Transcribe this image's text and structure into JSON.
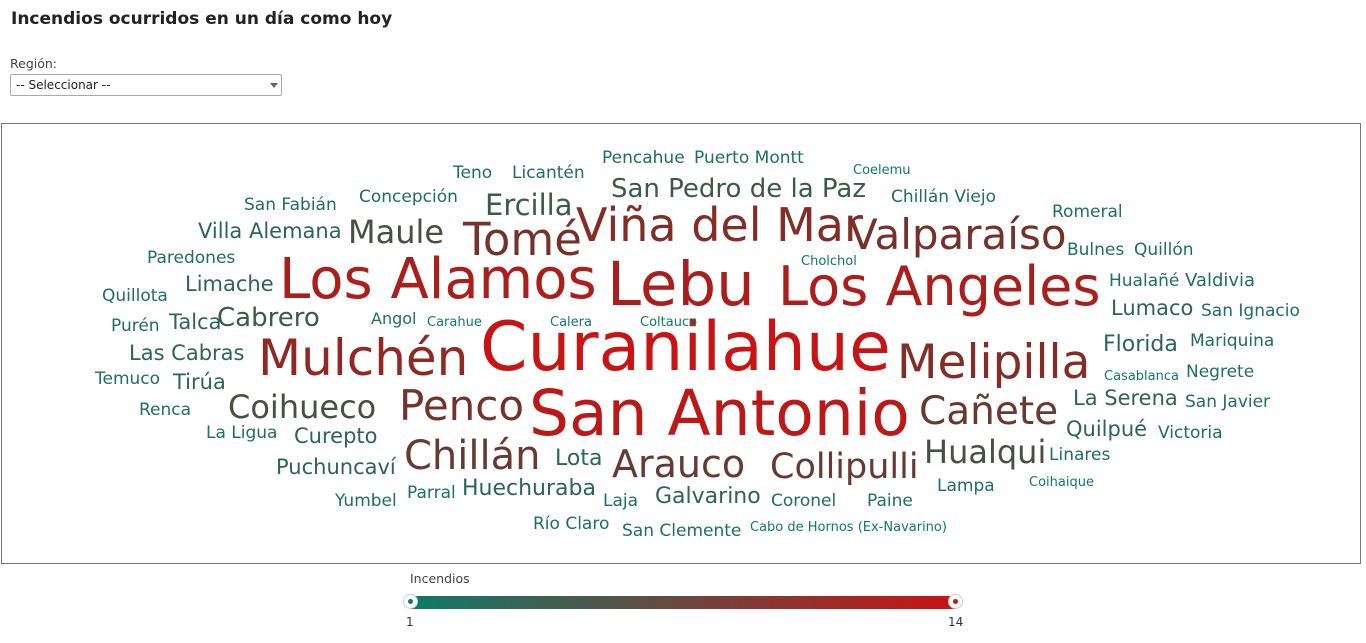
{
  "title": "Incendios ocurridos en un día como hoy",
  "filter": {
    "label": "Región:",
    "selected": "-- Seleccionar --"
  },
  "legend": {
    "title": "Incendios",
    "min_label": "1",
    "max_label": "14",
    "color_low": "#0f7a68",
    "color_high": "#c81414"
  },
  "chart_data": {
    "type": "wordcloud",
    "value_range": [
      1,
      14
    ],
    "words": [
      {
        "text": "Curanilahue",
        "value": 14
      },
      {
        "text": "San Antonio",
        "value": 13
      },
      {
        "text": "Lebu",
        "value": 12
      },
      {
        "text": "Los Alamos",
        "value": 12
      },
      {
        "text": "Los Angeles",
        "value": 12
      },
      {
        "text": "Mulchén",
        "value": 10
      },
      {
        "text": "Melipilla",
        "value": 9
      },
      {
        "text": "Viña del Mar",
        "value": 9
      },
      {
        "text": "Tomé",
        "value": 8
      },
      {
        "text": "Valparaíso",
        "value": 8
      },
      {
        "text": "Penco",
        "value": 8
      },
      {
        "text": "Cañete",
        "value": 7
      },
      {
        "text": "Chillán",
        "value": 7
      },
      {
        "text": "Arauco",
        "value": 7
      },
      {
        "text": "Collipulli",
        "value": 7
      },
      {
        "text": "Coihueco",
        "value": 5
      },
      {
        "text": "Maule",
        "value": 5
      },
      {
        "text": "Hualqui",
        "value": 5
      },
      {
        "text": "Ercilla",
        "value": 4
      },
      {
        "text": "San Pedro de la Paz",
        "value": 4
      },
      {
        "text": "Cabrero",
        "value": 4
      },
      {
        "text": "Puchuncaví",
        "value": 3
      },
      {
        "text": "Huechuraba",
        "value": 3
      },
      {
        "text": "Galvarino",
        "value": 3
      },
      {
        "text": "Lota",
        "value": 3
      },
      {
        "text": "Valdivia",
        "value": 2
      },
      {
        "text": "Florida",
        "value": 3
      },
      {
        "text": "La Serena",
        "value": 3
      },
      {
        "text": "Quilpué",
        "value": 3
      },
      {
        "text": "Lumaco",
        "value": 3
      },
      {
        "text": "Limache",
        "value": 3
      },
      {
        "text": "Las Cabras",
        "value": 3
      },
      {
        "text": "Villa Alemana",
        "value": 3
      },
      {
        "text": "Talca",
        "value": 3
      },
      {
        "text": "Tirúa",
        "value": 3
      },
      {
        "text": "Curepto",
        "value": 3
      },
      {
        "text": "Concepción",
        "value": 2
      },
      {
        "text": "Licantén",
        "value": 2
      },
      {
        "text": "Pencahue",
        "value": 2
      },
      {
        "text": "Puerto Montt",
        "value": 2
      },
      {
        "text": "Chillán Viejo",
        "value": 2
      },
      {
        "text": "Romeral",
        "value": 2
      },
      {
        "text": "Bulnes",
        "value": 2
      },
      {
        "text": "Quillón",
        "value": 2
      },
      {
        "text": "Hualañé",
        "value": 2
      },
      {
        "text": "San Ignacio",
        "value": 2
      },
      {
        "text": "Mariquina",
        "value": 2
      },
      {
        "text": "Negrete",
        "value": 2
      },
      {
        "text": "San Javier",
        "value": 2
      },
      {
        "text": "Victoria",
        "value": 2
      },
      {
        "text": "Linares",
        "value": 2
      },
      {
        "text": "Lampa",
        "value": 2
      },
      {
        "text": "Paine",
        "value": 2
      },
      {
        "text": "Coronel",
        "value": 2
      },
      {
        "text": "San Clemente",
        "value": 2
      },
      {
        "text": "Río Claro",
        "value": 2
      },
      {
        "text": "Laja",
        "value": 2
      },
      {
        "text": "Parral",
        "value": 2
      },
      {
        "text": "Yumbel",
        "value": 2
      },
      {
        "text": "La Ligua",
        "value": 2
      },
      {
        "text": "Renca",
        "value": 2
      },
      {
        "text": "Temuco",
        "value": 2
      },
      {
        "text": "Purén",
        "value": 2
      },
      {
        "text": "Quillota",
        "value": 2
      },
      {
        "text": "Paredones",
        "value": 2
      },
      {
        "text": "San Fabián",
        "value": 2
      },
      {
        "text": "Teno",
        "value": 2
      },
      {
        "text": "Angol",
        "value": 2
      },
      {
        "text": "Carahue",
        "value": 1
      },
      {
        "text": "Calera",
        "value": 1
      },
      {
        "text": "Coltauco",
        "value": 1
      },
      {
        "text": "Cholchol",
        "value": 1
      },
      {
        "text": "Coelemu",
        "value": 1
      },
      {
        "text": "Casablanca",
        "value": 1
      },
      {
        "text": "Coihaique",
        "value": 1
      },
      {
        "text": "Cabo de Hornos (Ex-Navarino)",
        "value": 1
      }
    ]
  }
}
